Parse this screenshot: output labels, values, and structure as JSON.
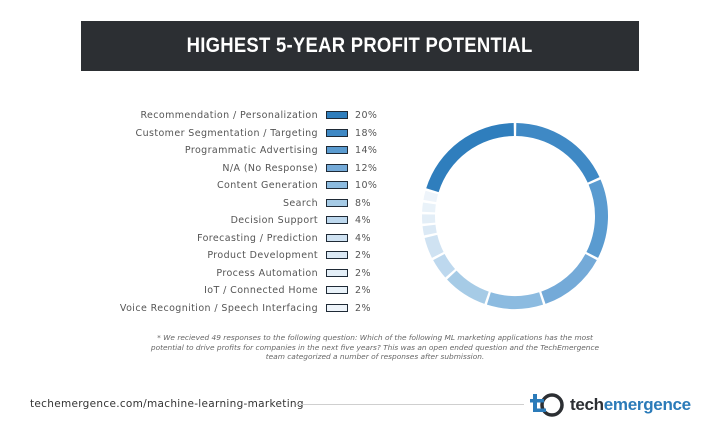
{
  "chart_data": {
    "type": "pie",
    "title": "HIGHEST 5-YEAR PROFIT POTENTIAL",
    "categories": [
      "Recommendation / Personalization",
      "Customer Segmentation / Targeting",
      "Programmatic Advertising",
      "N/A (No Response)",
      "Content Generation",
      "Search",
      "Decision Support",
      "Forecasting / Prediction",
      "Product Development",
      "Process Automation",
      "IoT / Connected Home",
      "Voice Recognition / Speech Interfacing"
    ],
    "values": [
      20,
      18,
      14,
      12,
      10,
      8,
      4,
      4,
      2,
      2,
      2,
      2
    ],
    "value_labels": [
      "20%",
      "18%",
      "14%",
      "12%",
      "10%",
      "8%",
      "4%",
      "4%",
      "2%",
      "2%",
      "2%",
      "2%"
    ],
    "colors": [
      "#2f7ebd",
      "#3f89c5",
      "#5a9bd0",
      "#74aad8",
      "#8cbbe0",
      "#a6cbe6",
      "#bdd8ee",
      "#cfe2f2",
      "#dbe9f5",
      "#e3eef7",
      "#e9f2f9",
      "#eef4fa"
    ],
    "donut_order": [
      1,
      2,
      3,
      4,
      5,
      6,
      7,
      8,
      9,
      10,
      11,
      0
    ],
    "legend_placement": "left"
  },
  "footnote": "* We recieved 49 responses to the following question: Which of the following ML marketing applications has the most potential to drive profits for companies in the next five years? This was an open ended question and the TechEmergence team categorized a number of responses after submission.",
  "footer": {
    "url": "techemergence.com/machine-learning-marketing",
    "logo_text_main": "tech",
    "logo_text_accent": "emergence"
  }
}
